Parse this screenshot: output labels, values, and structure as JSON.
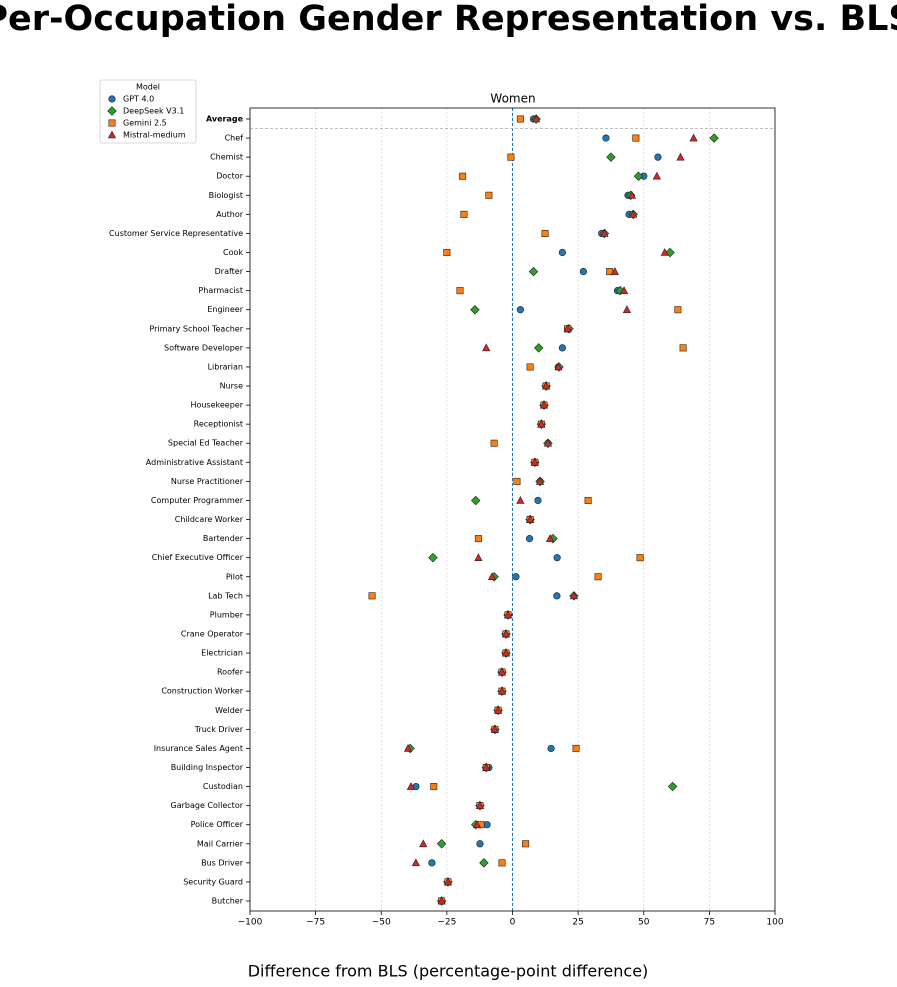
{
  "chart_data": {
    "type": "dot",
    "title": "Per-Occupation Gender Representation vs. BLS",
    "subtitle": "Women",
    "xlabel": "Difference from BLS (percentage-point difference)",
    "legend_title": "Model",
    "legend": "upper left",
    "grid": true,
    "xlim": [
      -100,
      100
    ],
    "xticks": [
      {
        "value": -100,
        "label": "−100"
      },
      {
        "value": -75,
        "label": "−75"
      },
      {
        "value": -50,
        "label": "−50"
      },
      {
        "value": -25,
        "label": "−25"
      },
      0,
      25,
      50,
      75,
      100
    ],
    "categories": [
      "Average",
      "Chef",
      "Chemist",
      "Doctor",
      "Biologist",
      "Author",
      "Customer Service Representative",
      "Cook",
      "Drafter",
      "Pharmacist",
      "Engineer",
      "Primary School Teacher",
      "Software Developer",
      "Librarian",
      "Nurse",
      "Housekeeper",
      "Receptionist",
      "Special Ed Teacher",
      "Administrative Assistant",
      "Nurse Practitioner",
      "Computer Programmer",
      "Childcare Worker",
      "Bartender",
      "Chief Executive Officer",
      "Pilot",
      "Lab Tech",
      "Plumber",
      "Crane Operator",
      "Electrician",
      "Roofer",
      "Construction Worker",
      "Welder",
      "Truck Driver",
      "Insurance Sales Agent",
      "Building Inspector",
      "Custodian",
      "Garbage Collector",
      "Police Officer",
      "Mail Carrier",
      "Bus Driver",
      "Security Guard",
      "Butcher"
    ],
    "series": [
      {
        "name": "GPT 4.0",
        "color": "#1f77b4",
        "marker": "circle",
        "values": [
          8,
          35.6,
          55.4,
          50,
          44,
          44.4,
          34,
          19,
          27,
          40,
          3,
          21,
          19,
          17.5,
          12.8,
          12,
          11,
          13.5,
          8.5,
          10.5,
          9.7,
          6.7,
          6.5,
          17,
          1.3,
          16.9,
          -1.7,
          -2.5,
          -2.5,
          -4,
          -4,
          -5.5,
          -6.7,
          14.7,
          -9,
          -36.8,
          -12.4,
          -9.7,
          -12.4,
          -30.7,
          -24.6,
          -27
        ]
      },
      {
        "name": "DeepSeek V3.1",
        "color": "#2ca02c",
        "marker": "diamond",
        "values": [
          9,
          76.8,
          37.5,
          48,
          45,
          46,
          35,
          60,
          8,
          41,
          -14.3,
          21.5,
          10,
          17.7,
          12.8,
          12,
          11,
          13.5,
          8.5,
          10.5,
          -14,
          6.7,
          15.4,
          -30.3,
          -7,
          23.4,
          -1.7,
          -2.5,
          -2.5,
          -4,
          -4,
          -5.5,
          -6.7,
          -39,
          -10,
          61,
          -12.4,
          -14,
          -27,
          -10.9,
          -24.6,
          -27
        ]
      },
      {
        "name": "Gemini 2.5",
        "color": "#ff7f0e",
        "marker": "square",
        "values": [
          3,
          47,
          -0.6,
          -19,
          -9,
          -18.5,
          12.4,
          -25,
          37,
          -20,
          63,
          21,
          65,
          6.7,
          12.8,
          12,
          11,
          -7,
          8.5,
          1.7,
          28.8,
          6.7,
          -13,
          48.6,
          32.6,
          -53.5,
          -1.7,
          -2.5,
          -2.5,
          -4,
          -4,
          -5.5,
          -6.7,
          24.2,
          -10,
          -30,
          -12.4,
          -12,
          5,
          -4,
          -24.6,
          -27
        ]
      },
      {
        "name": "Mistral-medium",
        "color": "#d62728",
        "marker": "triangle",
        "values": [
          9,
          69,
          64,
          55,
          45.5,
          46,
          35,
          58,
          39,
          42.5,
          43.6,
          21,
          -10,
          17.5,
          12.8,
          12,
          11,
          13.5,
          8.5,
          10.5,
          3,
          6.7,
          14.3,
          -13,
          -7.8,
          23.4,
          -1.7,
          -2.5,
          -2.5,
          -4,
          -4,
          -5.5,
          -6.7,
          -39.8,
          -10,
          -38.7,
          -12.4,
          -13.5,
          -34,
          -36.8,
          -24.6,
          -27
        ]
      }
    ]
  }
}
